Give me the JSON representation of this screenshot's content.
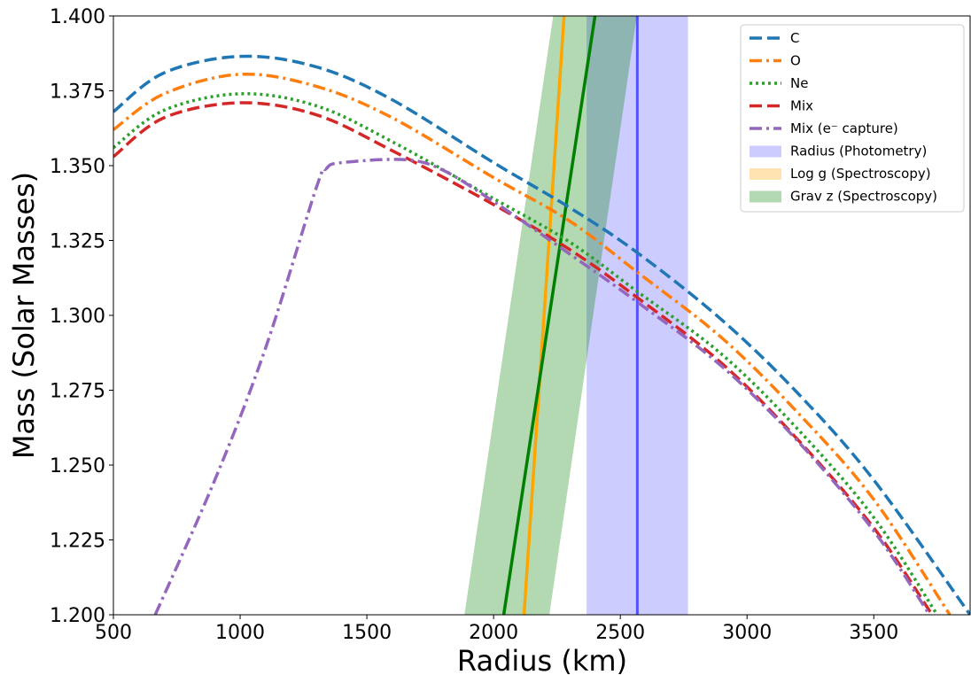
{
  "chart_data": {
    "type": "line",
    "xlabel": "Radius (km)",
    "ylabel": "Mass (Solar Masses)",
    "xlim": [
      500,
      3880
    ],
    "ylim": [
      1.2,
      1.4
    ],
    "xticks": [
      "500",
      "1000",
      "1500",
      "2000",
      "2500",
      "3000",
      "3500"
    ],
    "xtick_values": [
      500,
      1000,
      1500,
      2000,
      2500,
      3000,
      3500
    ],
    "yticks": [
      "1.200",
      "1.225",
      "1.250",
      "1.275",
      "1.300",
      "1.325",
      "1.350",
      "1.375",
      "1.400"
    ],
    "ytick_values": [
      1.2,
      1.225,
      1.25,
      1.275,
      1.3,
      1.325,
      1.35,
      1.375,
      1.4
    ],
    "grid": false,
    "legend_position": "top-right",
    "series": [
      {
        "name": "C",
        "color": "#1f77b4",
        "dash": "dashed",
        "x": [
          500,
          700,
          1000,
          1300,
          1600,
          2000,
          2300,
          2566,
          2900,
          3200,
          3500,
          3880
        ],
        "y": [
          1.368,
          1.381,
          1.3865,
          1.383,
          1.372,
          1.351,
          1.336,
          1.321,
          1.2985,
          1.274,
          1.245,
          1.2
        ]
      },
      {
        "name": "O",
        "color": "#ff7f0e",
        "dash": "dashdot",
        "x": [
          500,
          700,
          1000,
          1300,
          1600,
          2000,
          2300,
          2566,
          2900,
          3200,
          3500,
          3800
        ],
        "y": [
          1.362,
          1.374,
          1.3805,
          1.3765,
          1.366,
          1.346,
          1.3315,
          1.3145,
          1.2925,
          1.2675,
          1.2385,
          1.2
        ]
      },
      {
        "name": "Ne",
        "color": "#2ca02c",
        "dash": "dotted",
        "x": [
          500,
          700,
          1000,
          1300,
          1600,
          2000,
          2300,
          2566,
          2900,
          3200,
          3500,
          3750
        ],
        "y": [
          1.356,
          1.3685,
          1.374,
          1.37,
          1.358,
          1.339,
          1.3245,
          1.308,
          1.287,
          1.262,
          1.2325,
          1.2
        ]
      },
      {
        "name": "Mix",
        "color": "#d62728",
        "dash": "dashed",
        "x": [
          500,
          700,
          1000,
          1300,
          1600,
          2000,
          2300,
          2566,
          2900,
          3200,
          3500,
          3730
        ],
        "y": [
          1.353,
          1.366,
          1.371,
          1.367,
          1.355,
          1.337,
          1.322,
          1.306,
          1.284,
          1.2585,
          1.229,
          1.2
        ]
      },
      {
        "name": "Mix (e⁻ capture)",
        "color": "#9467bd",
        "dash": "dashdot",
        "x": [
          665,
          900,
          1100,
          1300,
          1340,
          1400,
          1650,
          1800,
          2000,
          2300,
          2566,
          2900,
          3200,
          3500,
          3720
        ],
        "y": [
          1.2,
          1.245,
          1.289,
          1.3425,
          1.349,
          1.351,
          1.352,
          1.3485,
          1.338,
          1.3205,
          1.3045,
          1.283,
          1.258,
          1.228,
          1.2
        ]
      }
    ],
    "bands": [
      {
        "name": "Radius (Photometry)",
        "color": "#0000ff",
        "alpha": 0.2,
        "x_range": [
          2367,
          2767
        ],
        "center_x": 2567,
        "line_color": "#0000ff"
      },
      {
        "name": "Log g (Spectroscopy)",
        "color": "#ffa500",
        "alpha": 0.3,
        "center_line": {
          "x": [
            2120,
            2278
          ],
          "y": [
            1.2,
            1.4
          ]
        },
        "line_color": "#ffa500"
      },
      {
        "name": "Grav z (Spectroscopy)",
        "color": "#008000",
        "alpha": 0.3,
        "polygon": {
          "x": [
            1885,
            2220,
            2565,
            2235
          ],
          "y": [
            1.2,
            1.2,
            1.4,
            1.4
          ]
        },
        "center_line": {
          "x": [
            2040,
            2400
          ],
          "y": [
            1.2,
            1.4
          ]
        },
        "line_color": "#008000"
      }
    ]
  }
}
